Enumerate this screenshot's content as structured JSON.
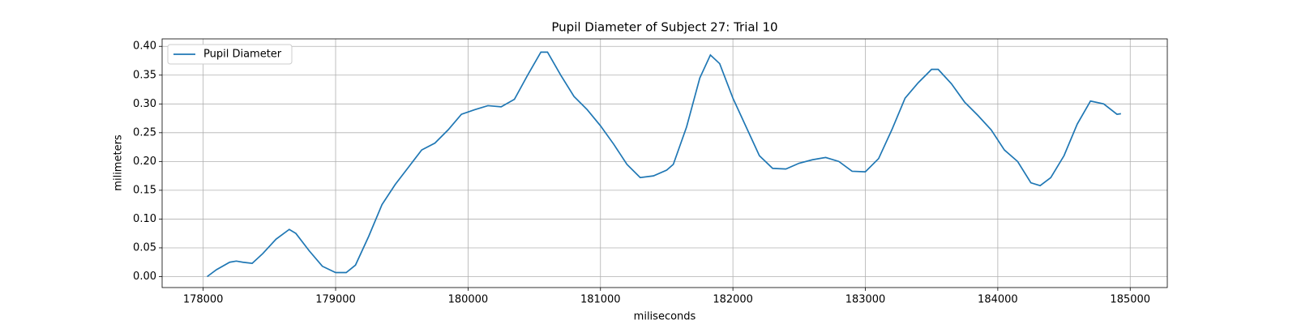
{
  "chart_data": {
    "type": "line",
    "title": "Pupil Diameter of Subject 27: Trial 10",
    "x_label": "miliseconds",
    "y_label": "milimeters",
    "grid": true,
    "legend": "upper left",
    "xlim": [
      177690,
      185280
    ],
    "ylim": [
      -0.019,
      0.413
    ],
    "xticks": [
      178000,
      179000,
      180000,
      181000,
      182000,
      183000,
      184000,
      185000
    ],
    "yticks": [
      {
        "value": 0,
        "label": "0.00"
      },
      {
        "value": 0.05,
        "label": "0.05"
      },
      {
        "value": 0.1,
        "label": "0.10"
      },
      {
        "value": 0.15,
        "label": "0.15"
      },
      {
        "value": 0.2,
        "label": "0.20"
      },
      {
        "value": 0.25,
        "label": "0.25"
      },
      {
        "value": 0.3,
        "label": "0.30"
      },
      {
        "value": 0.35,
        "label": "0.35"
      },
      {
        "value": 0.4,
        "label": "0.40"
      }
    ],
    "x": [
      178030,
      178100,
      178200,
      178250,
      178300,
      178370,
      178450,
      178550,
      178650,
      178700,
      178800,
      178900,
      179000,
      179080,
      179150,
      179250,
      179350,
      179450,
      179550,
      179650,
      179750,
      179850,
      179950,
      180050,
      180150,
      180250,
      180350,
      180450,
      180550,
      180600,
      180700,
      180800,
      180900,
      181000,
      181100,
      181200,
      181300,
      181400,
      181500,
      181550,
      181650,
      181750,
      181830,
      181900,
      182000,
      182100,
      182200,
      182300,
      182400,
      182500,
      182600,
      182700,
      182800,
      182900,
      183000,
      183100,
      183200,
      183300,
      183400,
      183500,
      183550,
      183650,
      183750,
      183850,
      183950,
      184050,
      184150,
      184250,
      184320,
      184400,
      184500,
      184600,
      184700,
      184800,
      184900,
      184930
    ],
    "series": [
      {
        "name": "Pupil Diameter",
        "color": "#1f77b4",
        "values": [
          0.0,
          0.012,
          0.025,
          0.027,
          0.025,
          0.023,
          0.04,
          0.065,
          0.082,
          0.075,
          0.045,
          0.018,
          0.007,
          0.007,
          0.02,
          0.07,
          0.125,
          0.16,
          0.19,
          0.22,
          0.232,
          0.255,
          0.282,
          0.29,
          0.297,
          0.295,
          0.308,
          0.35,
          0.39,
          0.39,
          0.35,
          0.313,
          0.29,
          0.262,
          0.23,
          0.195,
          0.172,
          0.175,
          0.185,
          0.195,
          0.26,
          0.345,
          0.385,
          0.37,
          0.31,
          0.26,
          0.21,
          0.188,
          0.187,
          0.197,
          0.203,
          0.207,
          0.2,
          0.183,
          0.182,
          0.205,
          0.255,
          0.31,
          0.337,
          0.36,
          0.36,
          0.335,
          0.303,
          0.28,
          0.255,
          0.22,
          0.2,
          0.163,
          0.158,
          0.172,
          0.21,
          0.265,
          0.305,
          0.3,
          0.282,
          0.283
        ]
      }
    ]
  }
}
